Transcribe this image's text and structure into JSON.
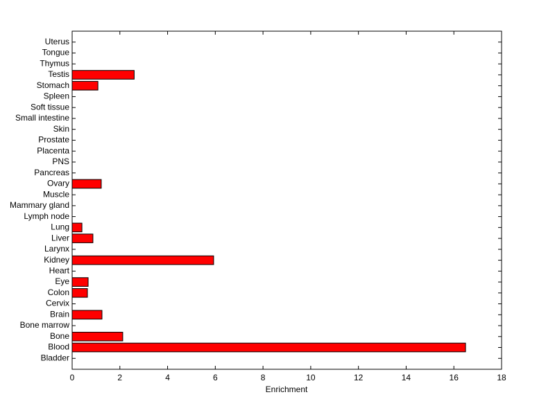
{
  "chart_data": {
    "type": "barh",
    "xlabel": "Enrichment",
    "categories": [
      "Bladder",
      "Blood",
      "Bone",
      "Bone marrow",
      "Brain",
      "Cervix",
      "Colon",
      "Eye",
      "Heart",
      "Kidney",
      "Larynx",
      "Liver",
      "Lung",
      "Lymph node",
      "Mammary gland",
      "Muscle",
      "Ovary",
      "Pancreas",
      "PNS",
      "Placenta",
      "Prostate",
      "Skin",
      "Small intestine",
      "Soft tissue",
      "Spleen",
      "Stomach",
      "Testis",
      "Thymus",
      "Tongue",
      "Uterus"
    ],
    "values": [
      0,
      16.49,
      2.12,
      0,
      1.25,
      0,
      0.64,
      0.67,
      0,
      5.93,
      0,
      0.87,
      0.41,
      0,
      0,
      0,
      1.22,
      0,
      0,
      0,
      0,
      0,
      0,
      0,
      0,
      1.08,
      2.6,
      0,
      0,
      0
    ],
    "color": "#ff0000",
    "xlim": [
      0,
      18
    ],
    "xticks": [
      0,
      2,
      4,
      6,
      8,
      10,
      12,
      14,
      16,
      18
    ]
  }
}
